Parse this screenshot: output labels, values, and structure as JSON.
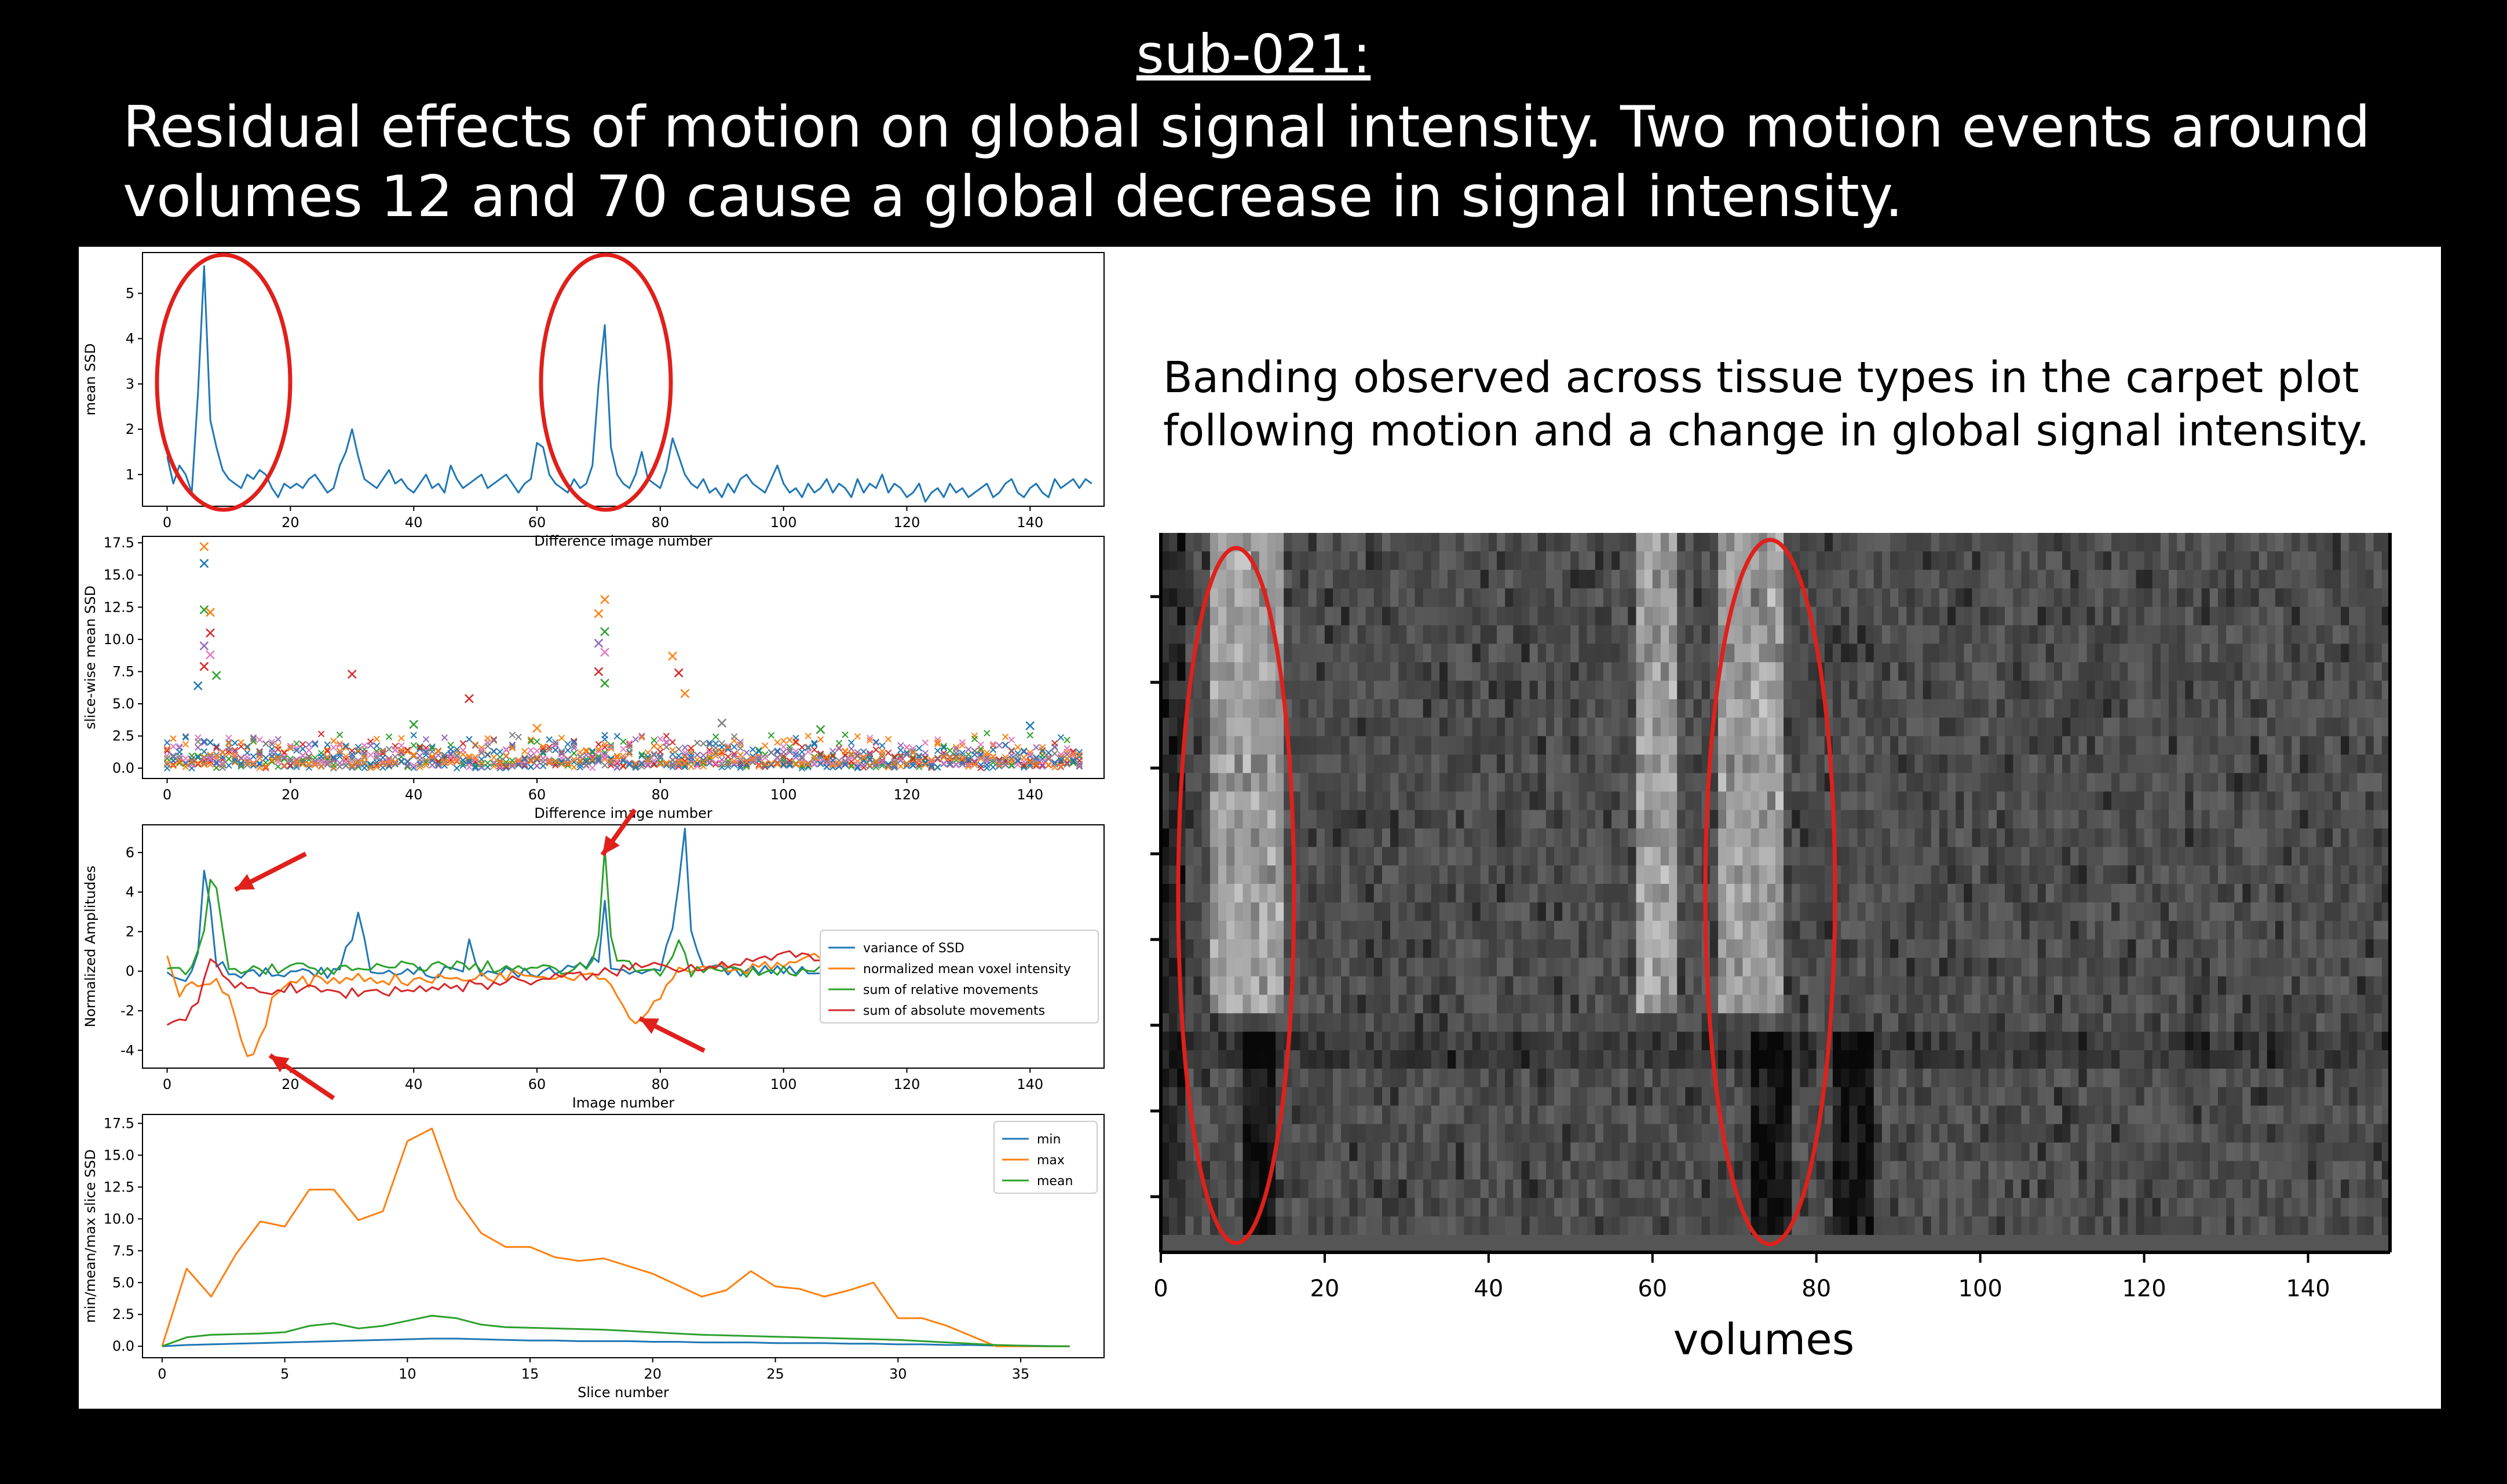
{
  "title": "sub-021:",
  "subtitle": "Residual effects of motion on global signal intensity. Two motion events around volumes 12 and 70 cause a global decrease in signal intensity.",
  "note": "Banding observed across tissue types in the carpet plot following motion and a change in global signal intensity.",
  "colors": {
    "blue": "#1f77b4",
    "orange": "#ff7f0e",
    "green": "#2ca02c",
    "red": "#d62728",
    "highlight": "#e0201b"
  },
  "chart_data": [
    {
      "type": "line",
      "ylabel": "mean SSD",
      "xlabel": "Difference image number",
      "xlim": [
        -4,
        152
      ],
      "ylim": [
        0.3,
        5.9
      ],
      "xticks": [
        0,
        20,
        40,
        60,
        80,
        100,
        120,
        140
      ],
      "yticks": [
        1,
        2,
        3,
        4,
        5
      ],
      "series": [
        {
          "name": "",
          "color": "blue",
          "values": [
            1.4,
            0.8,
            1.2,
            1.0,
            0.6,
            2.8,
            5.6,
            2.2,
            1.6,
            1.1,
            0.9,
            0.8,
            0.7,
            1.0,
            0.9,
            1.1,
            1.0,
            0.7,
            0.5,
            0.8,
            0.7,
            0.8,
            0.7,
            0.9,
            1.0,
            0.8,
            0.6,
            0.7,
            1.2,
            1.5,
            2.0,
            1.4,
            0.9,
            0.8,
            0.7,
            0.9,
            1.1,
            0.8,
            0.9,
            0.7,
            0.6,
            0.8,
            1.0,
            0.7,
            0.8,
            0.6,
            1.2,
            0.9,
            0.7,
            0.8,
            0.9,
            1.0,
            0.7,
            0.8,
            0.9,
            1.0,
            0.8,
            0.6,
            0.8,
            0.9,
            1.7,
            1.6,
            1.0,
            0.8,
            0.7,
            0.6,
            0.9,
            0.7,
            0.8,
            1.2,
            3.0,
            4.3,
            1.6,
            1.0,
            0.8,
            0.7,
            1.0,
            1.5,
            0.9,
            0.8,
            0.7,
            1.1,
            1.8,
            1.4,
            1.0,
            0.8,
            0.7,
            0.9,
            0.6,
            0.7,
            0.5,
            0.8,
            0.6,
            0.9,
            1.0,
            0.8,
            0.7,
            0.6,
            0.9,
            1.2,
            0.8,
            0.6,
            0.7,
            0.5,
            0.8,
            0.6,
            0.7,
            0.9,
            0.6,
            0.8,
            0.7,
            0.5,
            0.9,
            0.6,
            0.8,
            0.7,
            1.0,
            0.6,
            0.8,
            0.7,
            0.5,
            0.6,
            0.8,
            0.4,
            0.6,
            0.7,
            0.5,
            0.8,
            0.6,
            0.7,
            0.5,
            0.6,
            0.7,
            0.8,
            0.5,
            0.6,
            0.8,
            0.9,
            0.6,
            0.5,
            0.7,
            0.8,
            0.6,
            0.5,
            0.9,
            0.7,
            0.8,
            0.9,
            0.7,
            0.9,
            0.8
          ]
        }
      ]
    },
    {
      "type": "scatter",
      "ylabel": "slice-wise mean SSD",
      "xlabel": "Difference image number",
      "xlim": [
        -4,
        152
      ],
      "ylim": [
        -0.8,
        18
      ],
      "xticks": [
        0,
        20,
        40,
        60,
        80,
        100,
        120,
        140
      ],
      "yticks": [
        0.0,
        2.5,
        5.0,
        7.5,
        10.0,
        12.5,
        15.0,
        17.5
      ],
      "marker": "x",
      "points": [
        {
          "x": 6,
          "y": 17.2,
          "color": "orange"
        },
        {
          "x": 6,
          "y": 15.9,
          "color": "blue"
        },
        {
          "x": 6,
          "y": 12.3,
          "color": "green"
        },
        {
          "x": 7,
          "y": 12.1,
          "color": "orange"
        },
        {
          "x": 7,
          "y": 10.5,
          "color": "red"
        },
        {
          "x": 6,
          "y": 9.5,
          "color": "purple"
        },
        {
          "x": 7,
          "y": 8.8,
          "color": "pink"
        },
        {
          "x": 6,
          "y": 7.9,
          "color": "red"
        },
        {
          "x": 8,
          "y": 7.2,
          "color": "green"
        },
        {
          "x": 5,
          "y": 6.4,
          "color": "blue"
        },
        {
          "x": 30,
          "y": 7.3,
          "color": "red"
        },
        {
          "x": 49,
          "y": 5.4,
          "color": "red"
        },
        {
          "x": 71,
          "y": 13.1,
          "color": "orange"
        },
        {
          "x": 70,
          "y": 12.0,
          "color": "orange"
        },
        {
          "x": 71,
          "y": 10.6,
          "color": "green"
        },
        {
          "x": 70,
          "y": 9.7,
          "color": "purple"
        },
        {
          "x": 71,
          "y": 9.0,
          "color": "pink"
        },
        {
          "x": 70,
          "y": 7.5,
          "color": "red"
        },
        {
          "x": 71,
          "y": 6.6,
          "color": "green"
        },
        {
          "x": 82,
          "y": 8.7,
          "color": "orange"
        },
        {
          "x": 83,
          "y": 7.4,
          "color": "red"
        },
        {
          "x": 84,
          "y": 5.8,
          "color": "orange"
        },
        {
          "x": 90,
          "y": 3.5,
          "color": "gray"
        },
        {
          "x": 40,
          "y": 3.4,
          "color": "green"
        },
        {
          "x": 60,
          "y": 3.1,
          "color": "orange"
        },
        {
          "x": 106,
          "y": 3.0,
          "color": "green"
        },
        {
          "x": 140,
          "y": 3.3,
          "color": "blue"
        }
      ]
    },
    {
      "type": "line",
      "ylabel": "Normalized Amplitudes",
      "xlabel": "Image number",
      "xlim": [
        -4,
        152
      ],
      "ylim": [
        -4.9,
        7.4
      ],
      "xticks": [
        0,
        20,
        40,
        60,
        80,
        100,
        120,
        140
      ],
      "yticks": [
        -4,
        -2,
        0,
        2,
        4,
        6
      ],
      "legend_position": "lower right",
      "series": [
        {
          "name": "variance of SSD",
          "color": "blue",
          "key_points": [
            [
              0,
              0.0
            ],
            [
              3,
              -0.5
            ],
            [
              5,
              1.0
            ],
            [
              6,
              5.1
            ],
            [
              7,
              3.5
            ],
            [
              8,
              0.5
            ],
            [
              10,
              0.0
            ],
            [
              20,
              -0.2
            ],
            [
              28,
              0.0
            ],
            [
              31,
              2.8
            ],
            [
              33,
              0.0
            ],
            [
              48,
              -0.1
            ],
            [
              49,
              1.5
            ],
            [
              51,
              0.0
            ],
            [
              60,
              -0.2
            ],
            [
              70,
              0.5
            ],
            [
              71,
              3.5
            ],
            [
              72,
              0.0
            ],
            [
              80,
              0.0
            ],
            [
              82,
              2.0
            ],
            [
              84,
              7.0
            ],
            [
              85,
              2.0
            ],
            [
              87,
              0.0
            ],
            [
              100,
              0.0
            ],
            [
              120,
              0.1
            ],
            [
              147,
              0.0
            ]
          ]
        },
        {
          "name": "normalized mean voxel intensity",
          "color": "orange",
          "key_points": [
            [
              0,
              0.9
            ],
            [
              2,
              -1.2
            ],
            [
              5,
              -0.6
            ],
            [
              8,
              -0.6
            ],
            [
              10,
              -1.2
            ],
            [
              12,
              -3.5
            ],
            [
              13,
              -4.3
            ],
            [
              15,
              -3.5
            ],
            [
              17,
              -1.5
            ],
            [
              20,
              -0.6
            ],
            [
              30,
              -0.3
            ],
            [
              40,
              -0.5
            ],
            [
              50,
              -0.3
            ],
            [
              60,
              -0.1
            ],
            [
              65,
              -0.2
            ],
            [
              70,
              -0.1
            ],
            [
              72,
              -0.7
            ],
            [
              74,
              -1.8
            ],
            [
              76,
              -2.4
            ],
            [
              78,
              -2.1
            ],
            [
              80,
              -1.2
            ],
            [
              82,
              -0.1
            ],
            [
              87,
              0.3
            ],
            [
              95,
              0.1
            ],
            [
              105,
              0.6
            ],
            [
              115,
              0.3
            ],
            [
              125,
              0.9
            ],
            [
              135,
              0.6
            ],
            [
              147,
              1.2
            ]
          ]
        },
        {
          "name": "sum of relative movements",
          "color": "green",
          "key_points": [
            [
              0,
              0.0
            ],
            [
              4,
              0.0
            ],
            [
              6,
              2.0
            ],
            [
              7,
              4.5
            ],
            [
              8,
              4.3
            ],
            [
              9,
              2.0
            ],
            [
              10,
              0.0
            ],
            [
              20,
              0.2
            ],
            [
              30,
              0.0
            ],
            [
              40,
              0.3
            ],
            [
              55,
              0.2
            ],
            [
              65,
              0.0
            ],
            [
              69,
              0.3
            ],
            [
              70,
              2.0
            ],
            [
              71,
              6.2
            ],
            [
              72,
              2.0
            ],
            [
              73,
              0.3
            ],
            [
              80,
              0.0
            ],
            [
              83,
              1.5
            ],
            [
              85,
              0.0
            ],
            [
              100,
              0.0
            ],
            [
              120,
              0.2
            ],
            [
              147,
              0.5
            ]
          ]
        },
        {
          "name": "sum of absolute movements",
          "color": "red",
          "key_points": [
            [
              0,
              -2.7
            ],
            [
              3,
              -2.2
            ],
            [
              5,
              -1.5
            ],
            [
              7,
              0.7
            ],
            [
              9,
              -0.5
            ],
            [
              13,
              -0.9
            ],
            [
              20,
              -0.9
            ],
            [
              30,
              -1.1
            ],
            [
              40,
              -0.9
            ],
            [
              50,
              -0.7
            ],
            [
              60,
              -0.4
            ],
            [
              70,
              -0.2
            ],
            [
              75,
              0.2
            ],
            [
              80,
              0.3
            ],
            [
              85,
              0.2
            ],
            [
              90,
              0.4
            ],
            [
              100,
              0.7
            ],
            [
              110,
              0.9
            ],
            [
              120,
              1.0
            ],
            [
              130,
              1.1
            ],
            [
              140,
              1.1
            ],
            [
              147,
              1.0
            ]
          ]
        }
      ]
    },
    {
      "type": "line",
      "ylabel": "min/mean/max slice SSD",
      "xlabel": "Slice number",
      "xlim": [
        -0.8,
        38.4
      ],
      "ylim": [
        -0.9,
        18.2
      ],
      "xticks": [
        0,
        5,
        10,
        15,
        20,
        25,
        30,
        35
      ],
      "yticks": [
        0.0,
        2.5,
        5.0,
        7.5,
        10.0,
        12.5,
        15.0,
        17.5
      ],
      "legend_position": "upper right",
      "series": [
        {
          "name": "min",
          "color": "blue",
          "values": [
            0.0,
            0.1,
            0.15,
            0.2,
            0.25,
            0.3,
            0.35,
            0.4,
            0.45,
            0.5,
            0.55,
            0.6,
            0.6,
            0.55,
            0.5,
            0.45,
            0.45,
            0.4,
            0.4,
            0.4,
            0.35,
            0.35,
            0.3,
            0.3,
            0.3,
            0.25,
            0.25,
            0.25,
            0.2,
            0.2,
            0.15,
            0.15,
            0.1,
            0.1,
            0.05,
            0.05,
            0.02,
            0.0
          ]
        },
        {
          "name": "max",
          "color": "orange",
          "values": [
            0.0,
            6.1,
            3.9,
            7.2,
            9.8,
            9.4,
            12.3,
            12.3,
            9.9,
            10.6,
            16.1,
            17.1,
            11.6,
            8.9,
            7.8,
            7.8,
            7.0,
            6.7,
            6.9,
            6.3,
            5.7,
            4.8,
            3.9,
            4.4,
            5.9,
            4.7,
            4.5,
            3.9,
            4.4,
            5.0,
            2.2,
            2.2,
            1.6,
            0.8,
            0.0,
            0.0,
            0.0,
            0.0
          ]
        },
        {
          "name": "mean",
          "color": "green",
          "values": [
            0.0,
            0.7,
            0.9,
            0.95,
            1.0,
            1.1,
            1.6,
            1.8,
            1.4,
            1.6,
            2.0,
            2.4,
            2.2,
            1.7,
            1.5,
            1.45,
            1.4,
            1.35,
            1.3,
            1.2,
            1.1,
            1.0,
            0.9,
            0.85,
            0.8,
            0.75,
            0.7,
            0.65,
            0.6,
            0.55,
            0.5,
            0.4,
            0.3,
            0.2,
            0.1,
            0.05,
            0.0,
            0.0
          ]
        }
      ]
    },
    {
      "type": "heatmap",
      "xlabel": "volumes",
      "xlim": [
        0,
        150
      ],
      "xticks": [
        0,
        20,
        40,
        60,
        80,
        100,
        120,
        140
      ],
      "colormap": "gray",
      "rows": 38,
      "bright_bands": [
        [
          6,
          14
        ],
        [
          58,
          62
        ],
        [
          68,
          75
        ]
      ],
      "dark_bands": [
        [
          10,
          13
        ],
        [
          72,
          76
        ],
        [
          82,
          86
        ]
      ]
    }
  ]
}
